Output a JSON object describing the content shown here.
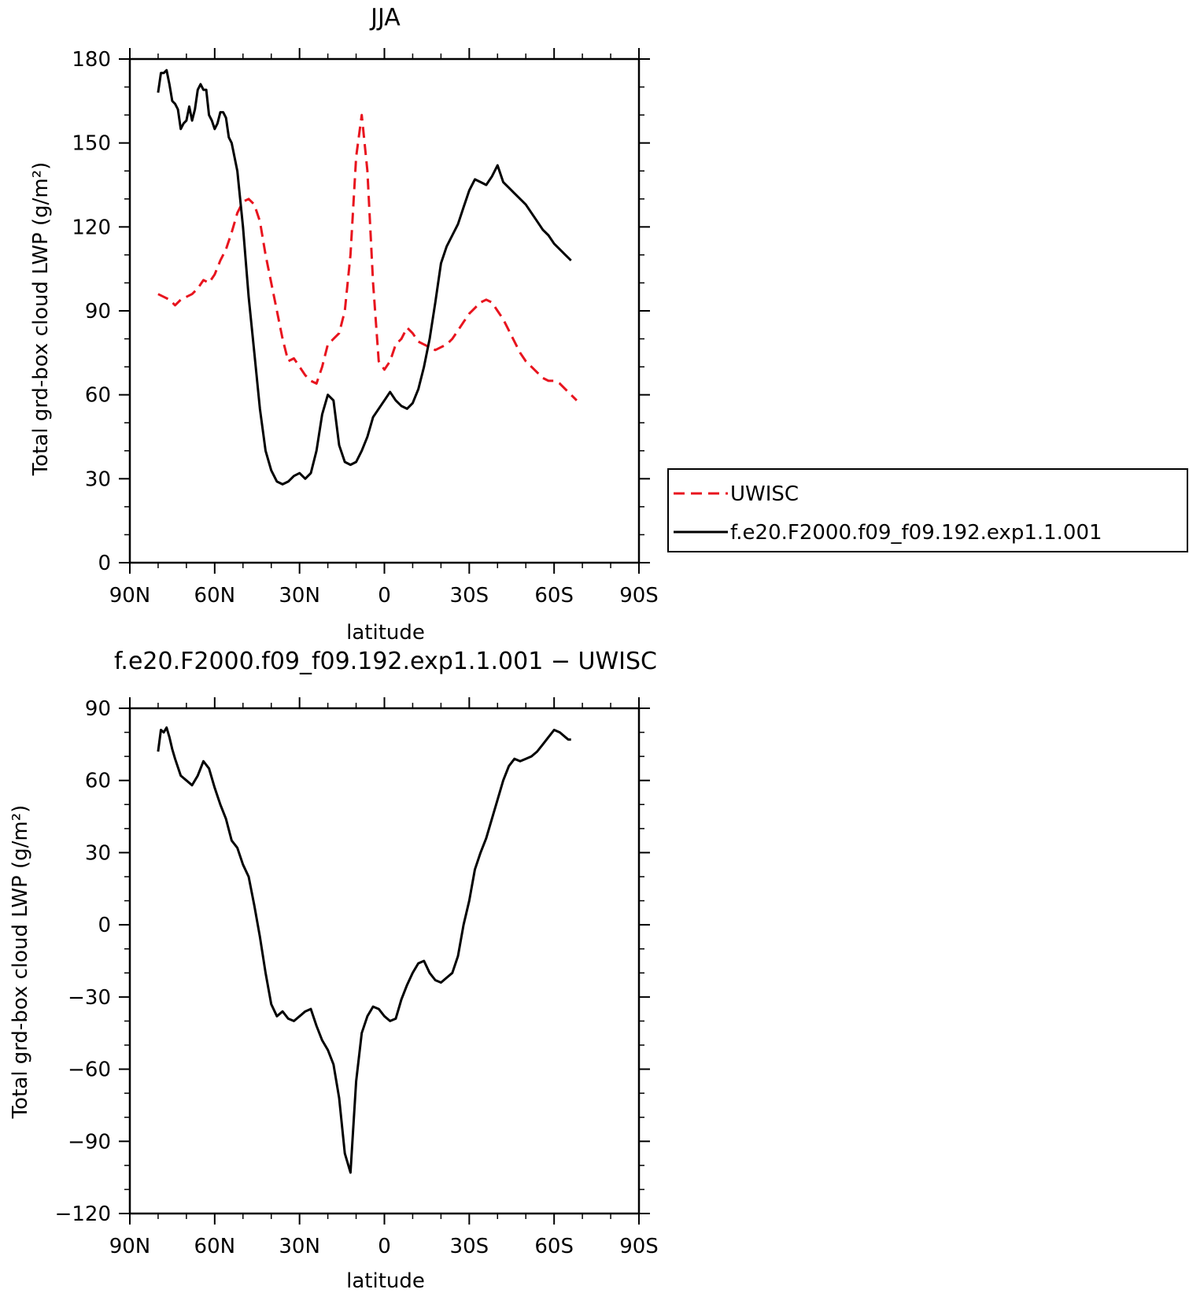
{
  "chart_data": [
    {
      "type": "line",
      "title": "JJA",
      "xlabel": "latitude",
      "ylabel": "Total grd-box cloud LWP (g/m²)",
      "xlim": [
        90,
        -90
      ],
      "ylim": [
        0,
        180
      ],
      "xticks": [
        90,
        60,
        30,
        0,
        -30,
        -60,
        -90
      ],
      "xtick_labels": [
        "90N",
        "60N",
        "30N",
        "0",
        "30S",
        "60S",
        "90S"
      ],
      "yticks": [
        0,
        30,
        60,
        90,
        120,
        150,
        180
      ],
      "ytick_labels": [
        "0",
        "30",
        "60",
        "90",
        "120",
        "150",
        "180"
      ],
      "grid": false,
      "legend": "right",
      "series": [
        {
          "name": "UWISC",
          "color": "#e8141e",
          "dash": "dashed",
          "x": [
            80,
            78,
            76,
            74,
            72,
            70,
            68,
            66,
            64,
            62,
            60,
            58,
            56,
            54,
            52,
            50,
            48,
            46,
            44,
            42,
            40,
            38,
            36,
            34,
            32,
            30,
            28,
            26,
            24,
            22,
            20,
            18,
            16,
            14,
            12,
            10,
            8,
            6,
            4,
            2,
            0,
            -2,
            -4,
            -6,
            -8,
            -10,
            -12,
            -14,
            -16,
            -18,
            -20,
            -22,
            -24,
            -26,
            -28,
            -30,
            -32,
            -34,
            -36,
            -38,
            -40,
            -42,
            -44,
            -46,
            -48,
            -50,
            -52,
            -54,
            -56,
            -58,
            -60,
            -62,
            -64,
            -66,
            -68
          ],
          "values": [
            96,
            95,
            94,
            92,
            94,
            95,
            96,
            98,
            101,
            100,
            103,
            108,
            112,
            118,
            125,
            129,
            130,
            128,
            122,
            110,
            100,
            90,
            80,
            72,
            73,
            70,
            67,
            65,
            64,
            70,
            78,
            80,
            82,
            90,
            110,
            145,
            160,
            140,
            100,
            72,
            69,
            72,
            78,
            80,
            84,
            82,
            79,
            78,
            77,
            76,
            77,
            78,
            80,
            83,
            86,
            89,
            91,
            93,
            94,
            93,
            90,
            87,
            83,
            79,
            75,
            72,
            70,
            68,
            66,
            65,
            65,
            64,
            62,
            60,
            58
          ]
        },
        {
          "name": "f.e20.F2000.f09_f09.192.exp1.1.001",
          "color": "#000000",
          "dash": "solid",
          "x": [
            80,
            79,
            78,
            77,
            76,
            75,
            74,
            73,
            72,
            71,
            70,
            69,
            68,
            67,
            66,
            65,
            64,
            63,
            62,
            61,
            60,
            59,
            58,
            57,
            56,
            55,
            54,
            53,
            52,
            51,
            50,
            48,
            46,
            44,
            42,
            40,
            38,
            36,
            34,
            32,
            30,
            28,
            26,
            24,
            22,
            20,
            18,
            16,
            14,
            12,
            10,
            8,
            6,
            4,
            2,
            0,
            -2,
            -4,
            -6,
            -8,
            -10,
            -12,
            -14,
            -16,
            -18,
            -20,
            -22,
            -24,
            -26,
            -28,
            -30,
            -32,
            -34,
            -36,
            -38,
            -40,
            -42,
            -44,
            -46,
            -48,
            -50,
            -52,
            -54,
            -56,
            -58,
            -60,
            -62,
            -63,
            -64,
            -65,
            -66
          ],
          "values": [
            168,
            175,
            175,
            176,
            171,
            165,
            164,
            162,
            155,
            157,
            158,
            163,
            158,
            162,
            169,
            171,
            169,
            169,
            160,
            158,
            155,
            157,
            161,
            161,
            159,
            152,
            150,
            145,
            140,
            130,
            120,
            95,
            75,
            55,
            40,
            33,
            29,
            28,
            29,
            31,
            32,
            30,
            32,
            40,
            53,
            60,
            58,
            42,
            36,
            35,
            36,
            40,
            45,
            52,
            55,
            58,
            61,
            58,
            56,
            55,
            57,
            62,
            70,
            80,
            93,
            107,
            113,
            117,
            121,
            127,
            133,
            137,
            136,
            135,
            138,
            142,
            136,
            134,
            132,
            130,
            128,
            125,
            122,
            119,
            117,
            114,
            112,
            111,
            110,
            109,
            108
          ]
        }
      ]
    },
    {
      "type": "line",
      "title": "f.e20.F2000.f09_f09.192.exp1.1.001 − UWISC",
      "xlabel": "latitude",
      "ylabel": "Total grd-box cloud LWP (g/m²)",
      "xlim": [
        90,
        -90
      ],
      "ylim": [
        -120,
        90
      ],
      "xticks": [
        90,
        60,
        30,
        0,
        -30,
        -60,
        -90
      ],
      "xtick_labels": [
        "90N",
        "60N",
        "30N",
        "0",
        "30S",
        "60S",
        "90S"
      ],
      "yticks": [
        -120,
        -90,
        -60,
        -30,
        0,
        30,
        60,
        90
      ],
      "ytick_labels": [
        "−120",
        "−90",
        "−60",
        "−30",
        "0",
        "30",
        "60",
        "90"
      ],
      "grid": false,
      "series": [
        {
          "color": "#000000",
          "dash": "solid",
          "x": [
            80,
            79,
            78,
            77,
            76,
            75,
            74,
            72,
            70,
            68,
            66,
            64,
            62,
            60,
            58,
            56,
            54,
            52,
            50,
            48,
            46,
            44,
            42,
            40,
            38,
            36,
            34,
            32,
            30,
            28,
            26,
            24,
            22,
            20,
            18,
            16,
            14,
            12,
            10,
            8,
            6,
            4,
            2,
            0,
            -2,
            -4,
            -6,
            -8,
            -10,
            -12,
            -14,
            -16,
            -18,
            -20,
            -22,
            -24,
            -26,
            -28,
            -30,
            -32,
            -34,
            -36,
            -38,
            -40,
            -42,
            -44,
            -46,
            -48,
            -50,
            -52,
            -54,
            -56,
            -58,
            -60,
            -62,
            -64,
            -65,
            -66
          ],
          "values": [
            72,
            81,
            80,
            82,
            78,
            73,
            69,
            62,
            60,
            58,
            62,
            68,
            65,
            57,
            50,
            44,
            35,
            32,
            25,
            20,
            8,
            -5,
            -20,
            -33,
            -38,
            -36,
            -39,
            -40,
            -38,
            -36,
            -35,
            -42,
            -48,
            -52,
            -58,
            -72,
            -95,
            -103,
            -65,
            -45,
            -38,
            -34,
            -35,
            -38,
            -40,
            -39,
            -31,
            -25,
            -20,
            -16,
            -15,
            -20,
            -23,
            -24,
            -22,
            -20,
            -13,
            0,
            10,
            23,
            30,
            36,
            44,
            52,
            60,
            66,
            69,
            68,
            69,
            70,
            72,
            75,
            78,
            81,
            80,
            78,
            77,
            77
          ]
        }
      ]
    }
  ]
}
